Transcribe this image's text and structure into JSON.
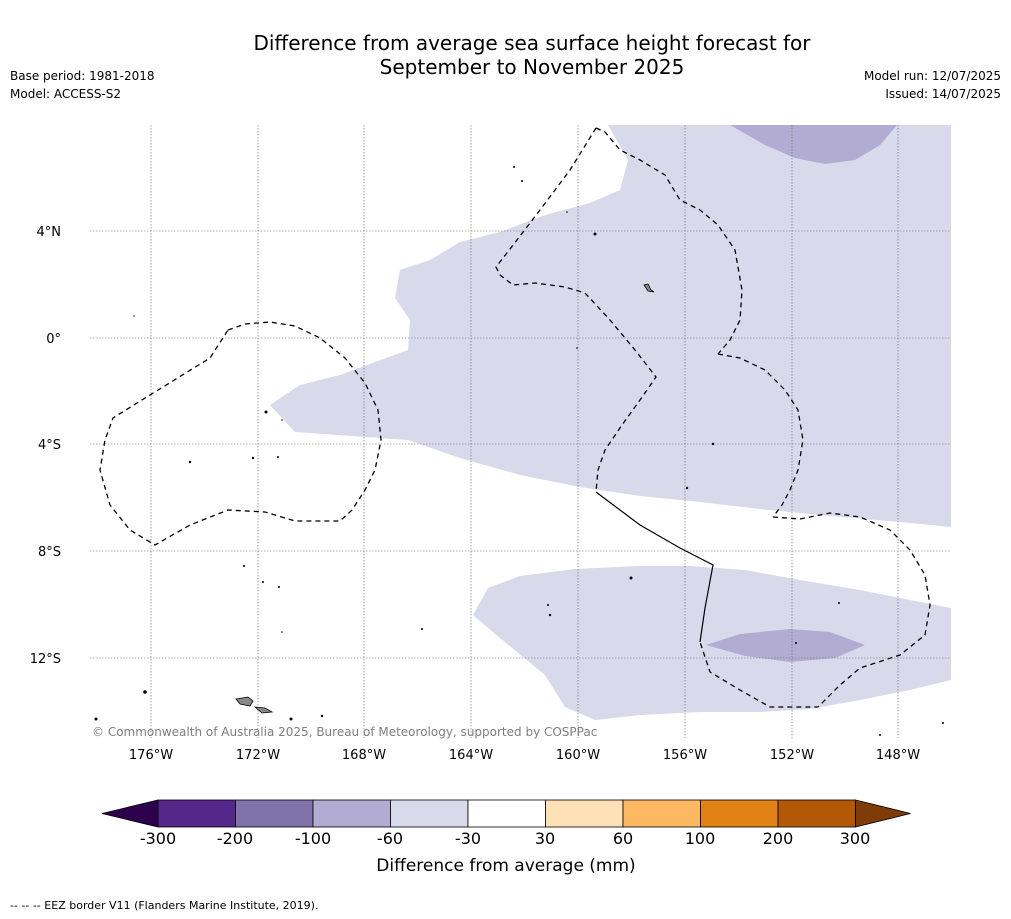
{
  "title_line1": "Difference from average sea surface height forecast for",
  "title_line2": "September to November 2025",
  "base_period": "Base period: 1981-2018",
  "model": "Model: ACCESS-S2",
  "model_run": "Model run: 12/07/2025",
  "issued": "Issued: 14/07/2025",
  "copyright": "© Commonwealth of Australia 2025, Bureau of Meteorology, supported by COSPPac",
  "lat_labels": [
    "4°N",
    "0°",
    "4°S",
    "8°S",
    "12°S"
  ],
  "lon_labels": [
    "176°W",
    "172°W",
    "168°W",
    "164°W",
    "160°W",
    "156°W",
    "152°W",
    "148°W"
  ],
  "colorbar": {
    "label": "Difference from average (mm)",
    "ticks": [
      "-300",
      "-200",
      "-100",
      "-60",
      "-30",
      "30",
      "60",
      "100",
      "200",
      "300"
    ],
    "colors": [
      "#2d004b",
      "#542788",
      "#8073ac",
      "#b2abd2",
      "#d8daeb",
      "#ffffff",
      "#fee0b6",
      "#fdb863",
      "#e08214",
      "#b35806",
      "#7f3b08"
    ]
  },
  "footer": "--  --  -- EEZ border V11 (Flanders Marine Institute, 2019)."
}
